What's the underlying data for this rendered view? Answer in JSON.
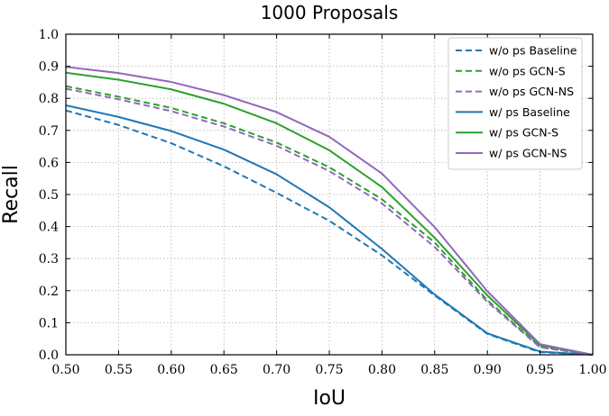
{
  "chart_data": {
    "type": "line",
    "title": "1000 Proposals",
    "xlabel": "IoU",
    "ylabel": "Recall",
    "xlim": [
      0.5,
      1.0
    ],
    "ylim": [
      0.0,
      1.0
    ],
    "grid": true,
    "legend_position": "top-right",
    "x": [
      0.5,
      0.55,
      0.6,
      0.65,
      0.7,
      0.75,
      0.8,
      0.85,
      0.9,
      0.95,
      1.0
    ],
    "x_ticks": [
      "0.50",
      "0.55",
      "0.60",
      "0.65",
      "0.70",
      "0.75",
      "0.80",
      "0.85",
      "0.90",
      "0.95",
      "1.00"
    ],
    "y_ticks": [
      "0.0",
      "0.1",
      "0.2",
      "0.3",
      "0.4",
      "0.5",
      "0.6",
      "0.7",
      "0.8",
      "0.9",
      "1.0"
    ],
    "series": [
      {
        "name": "w/o ps Baseline",
        "color": "#1f77b4",
        "style": "dashed",
        "values": [
          0.762,
          0.717,
          0.66,
          0.588,
          0.505,
          0.418,
          0.31,
          0.185,
          0.065,
          0.008,
          0.0
        ]
      },
      {
        "name": "w/o ps GCN-S",
        "color": "#2ca02c",
        "style": "dashed",
        "values": [
          0.838,
          0.805,
          0.77,
          0.722,
          0.662,
          0.585,
          0.485,
          0.35,
          0.17,
          0.025,
          0.0
        ]
      },
      {
        "name": "w/o ps GCN-NS",
        "color": "#9467bd",
        "style": "dashed",
        "values": [
          0.83,
          0.797,
          0.76,
          0.712,
          0.652,
          0.573,
          0.472,
          0.336,
          0.165,
          0.023,
          0.0
        ]
      },
      {
        "name": "w/ ps Baseline",
        "color": "#1f77b4",
        "style": "solid",
        "values": [
          0.778,
          0.742,
          0.698,
          0.64,
          0.563,
          0.46,
          0.33,
          0.188,
          0.067,
          0.01,
          0.0
        ]
      },
      {
        "name": "w/ ps GCN-S",
        "color": "#2ca02c",
        "style": "solid",
        "values": [
          0.88,
          0.858,
          0.828,
          0.783,
          0.722,
          0.638,
          0.523,
          0.365,
          0.185,
          0.03,
          0.0
        ]
      },
      {
        "name": "w/ ps GCN-NS",
        "color": "#9467bd",
        "style": "solid",
        "values": [
          0.898,
          0.879,
          0.851,
          0.81,
          0.757,
          0.68,
          0.565,
          0.398,
          0.198,
          0.033,
          0.0
        ]
      }
    ]
  }
}
